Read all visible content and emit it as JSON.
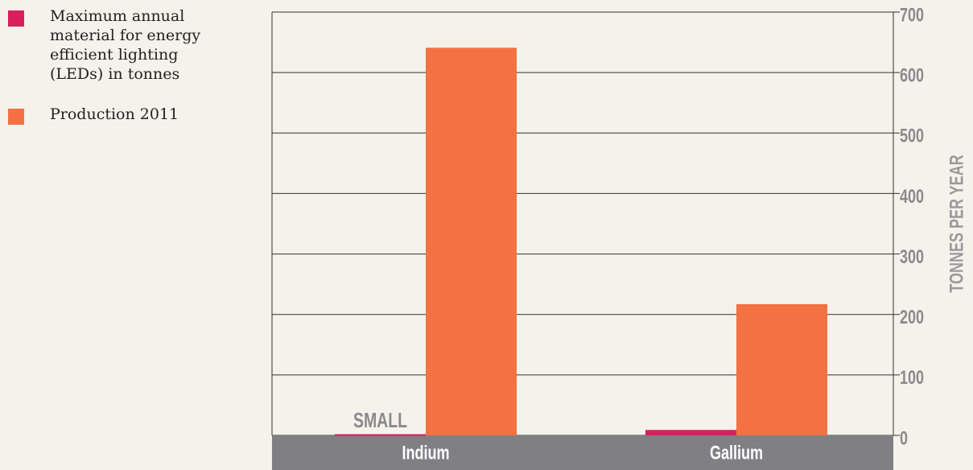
{
  "chart_data": {
    "type": "bar",
    "categories": [
      "Indium",
      "Gallium"
    ],
    "series": [
      {
        "name": "Maximum annual material for energy efficient lighting (LEDs) in tonnes",
        "color": "#d81e5b",
        "values": [
          2,
          9
        ]
      },
      {
        "name": "Production 2011",
        "color": "#f37142",
        "values": [
          641,
          217
        ]
      }
    ],
    "annotation": "SMALL",
    "y_axis_label": "TONNES PER YEAR",
    "ylim": [
      0,
      700
    ],
    "yticks": [
      0,
      100,
      200,
      300,
      400,
      500,
      600,
      700
    ],
    "grid": true,
    "legend": "top-left"
  }
}
